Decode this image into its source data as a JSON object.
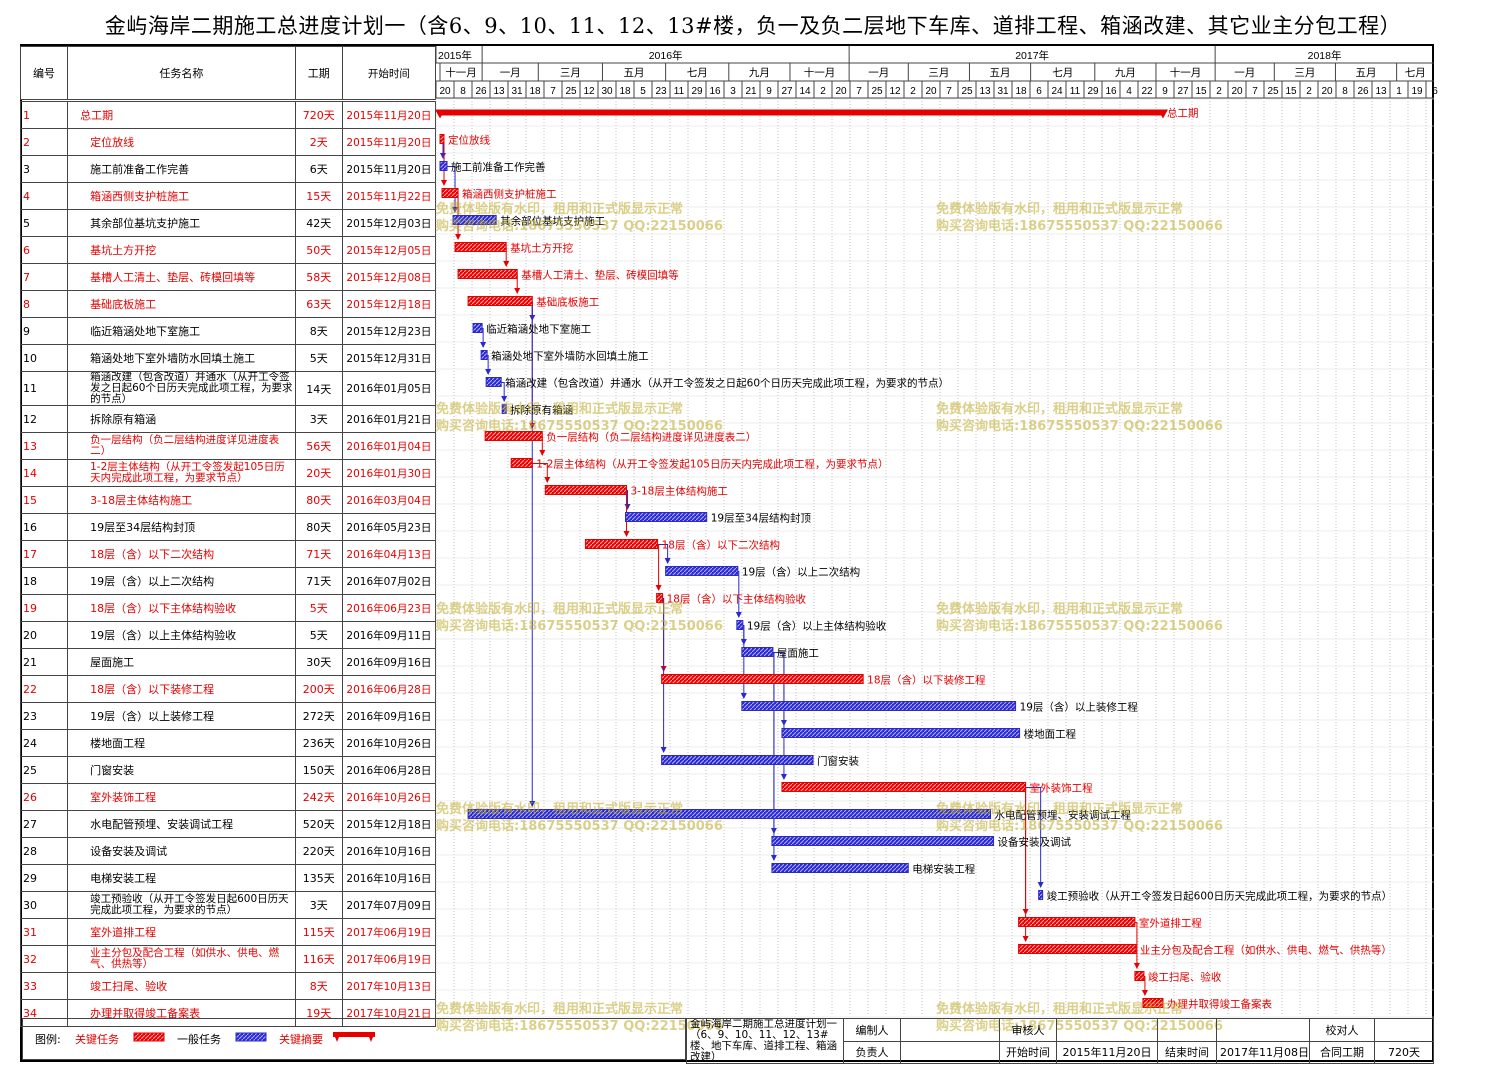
{
  "title": "金屿海岸二期施工总进度计划一（含6、9、10、11、12、13#楼，负一及负二层地下车库、道排工程、箱涵改建、其它业主分包工程）",
  "headers": {
    "id": "编号",
    "name": "任务名称",
    "duration": "工期",
    "start": "开始时间"
  },
  "colors": {
    "critical": "#e60000",
    "normal": "#2a2acc",
    "grid": "#444444",
    "watermark": "#c0a828"
  },
  "years": [
    {
      "label": "2015年",
      "start": "2015-11-16"
    },
    {
      "label": "2016年",
      "start": "2016-01-01"
    },
    {
      "label": "2017年",
      "start": "2017-01-01"
    },
    {
      "label": "2018年",
      "start": "2018-01-01"
    }
  ],
  "months": [
    {
      "label": "十一月",
      "start": "2015-11-20"
    },
    {
      "label": "一月",
      "start": "2016-01-01"
    },
    {
      "label": "三月",
      "start": "2016-02-26"
    },
    {
      "label": "五月",
      "start": "2016-04-30"
    },
    {
      "label": "七月",
      "start": "2016-07-02"
    },
    {
      "label": "九月",
      "start": "2016-09-03"
    },
    {
      "label": "十一月",
      "start": "2016-11-03"
    },
    {
      "label": "一月",
      "start": "2017-01-01"
    },
    {
      "label": "三月",
      "start": "2017-03-01"
    },
    {
      "label": "五月",
      "start": "2017-05-01"
    },
    {
      "label": "七月",
      "start": "2017-07-01"
    },
    {
      "label": "九月",
      "start": "2017-09-03"
    },
    {
      "label": "十一月",
      "start": "2017-11-03"
    },
    {
      "label": "一月",
      "start": "2018-01-01"
    },
    {
      "label": "三月",
      "start": "2018-03-01"
    },
    {
      "label": "五月",
      "start": "2018-05-01"
    },
    {
      "label": "七月",
      "start": "2018-07-01"
    }
  ],
  "day_ticks": [
    "20",
    "8",
    "26",
    "13",
    "31",
    "18",
    "7",
    "25",
    "12",
    "30",
    "18",
    "5",
    "23",
    "11",
    "29",
    "16",
    "3",
    "21",
    "9",
    "27",
    "14",
    "2",
    "20",
    "7",
    "25",
    "12",
    "2",
    "20",
    "7",
    "25",
    "13",
    "31",
    "18",
    "6",
    "24",
    "11",
    "29",
    "16",
    "4",
    "22",
    "9",
    "27",
    "15",
    "2",
    "20",
    "7",
    "25",
    "15",
    "2",
    "20",
    "8",
    "26",
    "13",
    "1",
    "19",
    "6"
  ],
  "tasks": [
    {
      "id": "1",
      "name": "总工期",
      "duration": "720天",
      "start": "2015年11月20日",
      "s": "2015-11-20",
      "e": "2017-11-08",
      "type": "summary",
      "label": "总工期"
    },
    {
      "id": "2",
      "name": "定位放线",
      "duration": "2天",
      "start": "2015年11月20日",
      "s": "2015-11-20",
      "e": "2015-11-21",
      "type": "critical",
      "label": "定位放线"
    },
    {
      "id": "3",
      "name": "施工前准备工作完善",
      "duration": "6天",
      "start": "2015年11月20日",
      "s": "2015-11-20",
      "e": "2015-11-25",
      "type": "normal",
      "label": "施工前准备工作完善"
    },
    {
      "id": "4",
      "name": "箱涵西侧支护桩施工",
      "duration": "15天",
      "start": "2015年11月22日",
      "s": "2015-11-22",
      "e": "2015-12-06",
      "type": "critical",
      "label": "箱涵西侧支护桩施工"
    },
    {
      "id": "5",
      "name": "其余部位基坑支护施工",
      "duration": "42天",
      "start": "2015年12月03日",
      "s": "2015-12-03",
      "e": "2016-01-13",
      "type": "normal",
      "label": "其余部位基坑支护施工"
    },
    {
      "id": "6",
      "name": "基坑土方开挖",
      "duration": "50天",
      "start": "2015年12月05日",
      "s": "2015-12-05",
      "e": "2016-01-23",
      "type": "critical",
      "label": "基坑土方开挖"
    },
    {
      "id": "7",
      "name": "基槽人工清土、垫层、砖模回填等",
      "duration": "58天",
      "start": "2015年12月08日",
      "s": "2015-12-08",
      "e": "2016-02-03",
      "type": "critical",
      "label": "基槽人工清土、垫层、砖模回填等"
    },
    {
      "id": "8",
      "name": "基础底板施工",
      "duration": "63天",
      "start": "2015年12月18日",
      "s": "2015-12-18",
      "e": "2016-02-18",
      "type": "critical",
      "label": "基础底板施工"
    },
    {
      "id": "9",
      "name": "临近箱涵处地下室施工",
      "duration": "8天",
      "start": "2015年12月23日",
      "s": "2015-12-23",
      "e": "2015-12-30",
      "type": "normal",
      "label": "临近箱涵处地下室施工"
    },
    {
      "id": "10",
      "name": "箱涵处地下室外墙防水回填土施工",
      "duration": "5天",
      "start": "2015年12月31日",
      "s": "2015-12-31",
      "e": "2016-01-04",
      "type": "normal",
      "label": "箱涵处地下室外墙防水回填土施工"
    },
    {
      "id": "11",
      "name": "箱涵改建（包含改道）并通水（从开工令签发之日起60个日历天完成此项工程，为要求的节点）",
      "duration": "14天",
      "start": "2016年01月05日",
      "s": "2016-01-05",
      "e": "2016-01-18",
      "type": "normal",
      "label": "箱涵改建（包含改道）并通水（从开工令签发之日起60个日历天完成此项工程，为要求的节点）"
    },
    {
      "id": "12",
      "name": "拆除原有箱涵",
      "duration": "3天",
      "start": "2016年01月21日",
      "s": "2016-01-21",
      "e": "2016-01-23",
      "type": "normal",
      "label": "拆除原有箱涵"
    },
    {
      "id": "13",
      "name": "负一层结构（负二层结构进度详见进度表二）",
      "duration": "56天",
      "start": "2016年01月04日",
      "s": "2016-01-04",
      "e": "2016-02-28",
      "type": "critical",
      "label": "负一层结构（负二层结构进度详见进度表二）"
    },
    {
      "id": "14",
      "name": "1-2层主体结构（从开工令签发起105日历天内完成此项工程，为要求节点）",
      "duration": "20天",
      "start": "2016年01月30日",
      "s": "2016-01-30",
      "e": "2016-02-18",
      "type": "critical",
      "label": "1-2层主体结构（从开工令签发起105日历天内完成此项工程，为要求节点）"
    },
    {
      "id": "15",
      "name": "3-18层主体结构施工",
      "duration": "80天",
      "start": "2016年03月04日",
      "s": "2016-03-04",
      "e": "2016-05-22",
      "type": "critical",
      "label": "3-18层主体结构施工"
    },
    {
      "id": "16",
      "name": "19层至34层结构封顶",
      "duration": "80天",
      "start": "2016年05月23日",
      "s": "2016-05-23",
      "e": "2016-08-10",
      "type": "normal",
      "label": "19层至34层结构封顶"
    },
    {
      "id": "17",
      "name": "18层（含）以下二次结构",
      "duration": "71天",
      "start": "2016年04月13日",
      "s": "2016-04-13",
      "e": "2016-06-22",
      "type": "critical",
      "label": "18层（含）以下二次结构"
    },
    {
      "id": "18",
      "name": "19层（含）以上二次结构",
      "duration": "71天",
      "start": "2016年07月02日",
      "s": "2016-07-02",
      "e": "2016-09-10",
      "type": "normal",
      "label": "19层（含）以上二次结构"
    },
    {
      "id": "19",
      "name": "18层（含）以下主体结构验收",
      "duration": "5天",
      "start": "2016年06月23日",
      "s": "2016-06-23",
      "e": "2016-06-27",
      "type": "critical",
      "label": "18层（含）以下主体结构验收"
    },
    {
      "id": "20",
      "name": "19层（含）以上主体结构验收",
      "duration": "5天",
      "start": "2016年09月11日",
      "s": "2016-09-11",
      "e": "2016-09-15",
      "type": "normal",
      "label": "19层（含）以上主体结构验收"
    },
    {
      "id": "21",
      "name": "屋面施工",
      "duration": "30天",
      "start": "2016年09月16日",
      "s": "2016-09-16",
      "e": "2016-10-15",
      "type": "normal",
      "label": "屋面施工"
    },
    {
      "id": "22",
      "name": "18层（含）以下装修工程",
      "duration": "200天",
      "start": "2016年06月28日",
      "s": "2016-06-28",
      "e": "2017-01-13",
      "type": "critical",
      "label": "18层（含）以下装修工程"
    },
    {
      "id": "23",
      "name": "19层（含）以上装修工程",
      "duration": "272天",
      "start": "2016年09月16日",
      "s": "2016-09-16",
      "e": "2017-06-14",
      "type": "normal",
      "label": "19层（含）以上装修工程"
    },
    {
      "id": "24",
      "name": "楼地面工程",
      "duration": "236天",
      "start": "2016年10月26日",
      "s": "2016-10-26",
      "e": "2017-06-18",
      "type": "normal",
      "label": "楼地面工程"
    },
    {
      "id": "25",
      "name": "门窗安装",
      "duration": "150天",
      "start": "2016年06月28日",
      "s": "2016-06-28",
      "e": "2016-11-24",
      "type": "normal",
      "label": "门窗安装"
    },
    {
      "id": "26",
      "name": "室外装饰工程",
      "duration": "242天",
      "start": "2016年10月26日",
      "s": "2016-10-26",
      "e": "2017-06-24",
      "type": "critical",
      "label": "室外装饰工程"
    },
    {
      "id": "27",
      "name": "水电配管预埋、安装调试工程",
      "duration": "520天",
      "start": "2015年12月18日",
      "s": "2015-12-18",
      "e": "2017-05-20",
      "type": "normal",
      "label": "水电配管预埋、安装调试工程"
    },
    {
      "id": "28",
      "name": "设备安装及调试",
      "duration": "220天",
      "start": "2016年10月16日",
      "s": "2016-10-16",
      "e": "2017-05-23",
      "type": "normal",
      "label": "设备安装及调试"
    },
    {
      "id": "29",
      "name": "电梯安装工程",
      "duration": "135天",
      "start": "2016年10月16日",
      "s": "2016-10-16",
      "e": "2017-02-27",
      "type": "normal",
      "label": "电梯安装工程"
    },
    {
      "id": "30",
      "name": "竣工预验收（从开工令签发日起600日历天完成此项工程，为要求的节点）",
      "duration": "3天",
      "start": "2017年07月09日",
      "s": "2017-07-09",
      "e": "2017-07-11",
      "type": "normal",
      "label": "竣工预验收（从开工令签发日起600日历天完成此项工程，为要求的节点）"
    },
    {
      "id": "31",
      "name": "室外道排工程",
      "duration": "115天",
      "start": "2017年06月19日",
      "s": "2017-06-19",
      "e": "2017-10-11",
      "type": "critical",
      "label": "室外道排工程"
    },
    {
      "id": "32",
      "name": "业主分包及配合工程（如供水、供电、燃气、供热等）",
      "duration": "116天",
      "start": "2017年06月19日",
      "s": "2017-06-19",
      "e": "2017-10-12",
      "type": "critical",
      "label": "业主分包及配合工程（如供水、供电、燃气、供热等）"
    },
    {
      "id": "33",
      "name": "竣工扫尾、验收",
      "duration": "8天",
      "start": "2017年10月13日",
      "s": "2017-10-13",
      "e": "2017-10-20",
      "type": "critical",
      "label": "竣工扫尾、验收"
    },
    {
      "id": "34",
      "name": "办理并取得竣工备案表",
      "duration": "19天",
      "start": "2017年10月21日",
      "s": "2017-10-21",
      "e": "2017-11-08",
      "type": "critical",
      "label": "办理并取得竣工备案表"
    }
  ],
  "links": [
    [
      "2",
      "3"
    ],
    [
      "2",
      "4"
    ],
    [
      "3",
      "5"
    ],
    [
      "4",
      "6"
    ],
    [
      "6",
      "7"
    ],
    [
      "7",
      "8"
    ],
    [
      "8",
      "9"
    ],
    [
      "9",
      "10"
    ],
    [
      "10",
      "11"
    ],
    [
      "11",
      "12"
    ],
    [
      "8",
      "13"
    ],
    [
      "13",
      "14"
    ],
    [
      "14",
      "15"
    ],
    [
      "15",
      "16"
    ],
    [
      "15",
      "17"
    ],
    [
      "17",
      "18"
    ],
    [
      "17",
      "19"
    ],
    [
      "18",
      "20"
    ],
    [
      "20",
      "21"
    ],
    [
      "19",
      "22"
    ],
    [
      "20",
      "23"
    ],
    [
      "21",
      "24"
    ],
    [
      "19",
      "25"
    ],
    [
      "21",
      "26"
    ],
    [
      "8",
      "27"
    ],
    [
      "21",
      "28"
    ],
    [
      "21",
      "29"
    ],
    [
      "26",
      "30"
    ],
    [
      "26",
      "31"
    ],
    [
      "26",
      "32"
    ],
    [
      "31",
      "33"
    ],
    [
      "33",
      "34"
    ]
  ],
  "legend": {
    "label": "图例:",
    "critical": "关键任务",
    "normal": "一般任务",
    "summary": "关键摘要"
  },
  "info": {
    "project": "金屿海岸二期施工总进度计划一（6、9、10、11、12、13#楼、地下车库、道排工程、箱涵改建）",
    "editor_label": "编制人",
    "editor": "",
    "reviewer_label": "审核人",
    "reviewer": "",
    "checker_label": "校对人",
    "checker": "",
    "owner_label": "负责人",
    "owner": "",
    "start_label": "开始时间",
    "start": "2015年11月20日",
    "end_label": "结束时间",
    "end": "2017年11月08日",
    "contract_label": "合同工期",
    "contract": "720天"
  },
  "watermark": {
    "line1": "免费体验版有水印，租用和正式版显示正常",
    "line2": "购买咨询电话:18675550537 QQ:22150066"
  }
}
